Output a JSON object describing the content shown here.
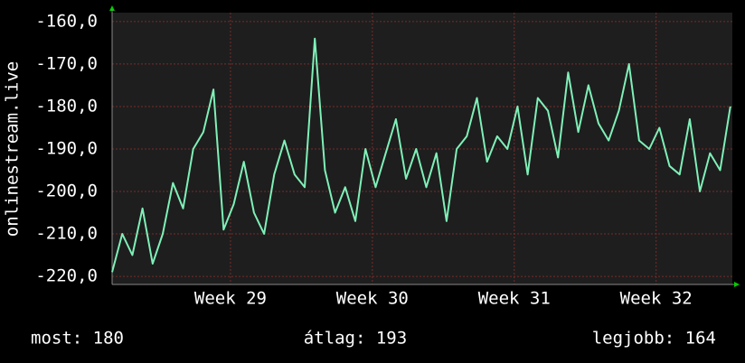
{
  "chart_data": {
    "type": "line",
    "ylabel": "onlinestream.live",
    "color": "#7ff0b8",
    "grid": true,
    "x": [
      0,
      0.5,
      1,
      1.5,
      2,
      2.5,
      3,
      3.5,
      4,
      4.5,
      5,
      5.5,
      6,
      6.5,
      7,
      7.5,
      8,
      8.5,
      9,
      9.5,
      10,
      10.5,
      11,
      11.5,
      12,
      12.5,
      13,
      13.5,
      14,
      14.5,
      15,
      15.5,
      16,
      16.5,
      17,
      17.5,
      18,
      18.5,
      19,
      19.5,
      20,
      20.5,
      21,
      21.5,
      22,
      22.5,
      23,
      23.5,
      24,
      24.5,
      25,
      25.5,
      26,
      26.5,
      27,
      27.5,
      28,
      28.5,
      29,
      29.5,
      30,
      30.5
    ],
    "values": [
      -219,
      -210,
      -215,
      -204,
      -217,
      -210,
      -198,
      -204,
      -190,
      -186,
      -176,
      -209,
      -203,
      -193,
      -205,
      -210,
      -196,
      -188,
      -196,
      -199,
      -164,
      -195,
      -205,
      -199,
      -207,
      -190,
      -199,
      -191,
      -183,
      -197,
      -190,
      -199,
      -191,
      -207,
      -190,
      -187,
      -178,
      -193,
      -187,
      -190,
      -180,
      -196,
      -178,
      -181,
      -192,
      -172,
      -186,
      -175,
      -184,
      -188,
      -181,
      -170,
      -188,
      -190,
      -185,
      -194,
      -196,
      -183,
      -200,
      -191,
      -195,
      -180
    ],
    "xlim": [
      0,
      30.6
    ],
    "xticks": [
      {
        "value": 5.84,
        "label": "Week 29"
      },
      {
        "value": 12.84,
        "label": "Week 30"
      },
      {
        "value": 19.84,
        "label": "Week 31"
      },
      {
        "value": 26.84,
        "label": "Week 32"
      }
    ],
    "ylim": [
      -221.9,
      -157.9
    ],
    "yticks": [
      {
        "value": -160,
        "label": "-160,0"
      },
      {
        "value": -170,
        "label": "-170,0"
      },
      {
        "value": -180,
        "label": "-180,0"
      },
      {
        "value": -190,
        "label": "-190,0"
      },
      {
        "value": -200,
        "label": "-200,0"
      },
      {
        "value": -210,
        "label": "-210,0"
      },
      {
        "value": -220,
        "label": "-220,0"
      }
    ],
    "footer": [
      "most: 180",
      "átlag: 193",
      "legjobb: 164"
    ]
  }
}
